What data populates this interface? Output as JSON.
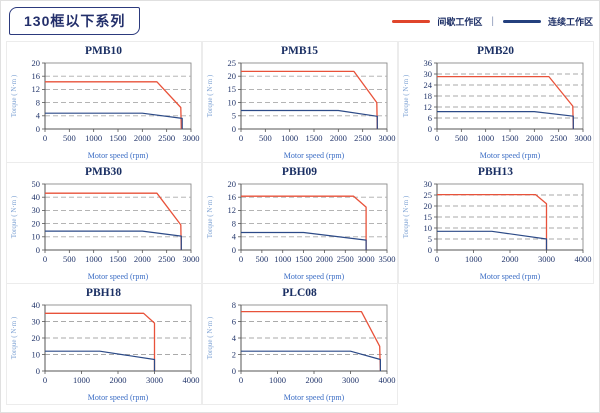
{
  "header": {
    "series_title": "130框以下系列",
    "legend": {
      "separator": "|",
      "items": [
        {
          "label": "间歇工作区",
          "color": "#e0452b"
        },
        {
          "label": "连续工作区",
          "color": "#24407e"
        }
      ]
    }
  },
  "colors": {
    "intermittent_line": "#e8523a",
    "continuous_line": "#2c4a87",
    "grid_line": "#aaaaaa",
    "plot_border": "#8c8c8c",
    "axis_line": "#555555",
    "tick_label": "#23366b",
    "xlabel_text": "#3a6cc4",
    "ylabel_text": "#7fa3d4",
    "title_text": "#1a2f63"
  },
  "chart_data": [
    {
      "type": "line",
      "title": "PMB10",
      "xlabel": "Motor speed (rpm)",
      "ylabel": "Torque ( N·m )",
      "xlim": [
        0,
        3000
      ],
      "xtick_step": 500,
      "ylim": [
        0,
        20
      ],
      "ytick_step": 4,
      "grid": "horizontal-dashed",
      "legend_position": "none",
      "series": [
        {
          "name": "间歇工作区",
          "color": "red",
          "points": [
            [
              0,
              14.3
            ],
            [
              2300,
              14.3
            ],
            [
              2790,
              6.5
            ],
            [
              2800,
              0
            ]
          ]
        },
        {
          "name": "连续工作区",
          "color": "blue",
          "points": [
            [
              0,
              4.8
            ],
            [
              2000,
              4.8
            ],
            [
              2820,
              3.2
            ],
            [
              2820,
              0
            ]
          ]
        }
      ]
    },
    {
      "type": "line",
      "title": "PMB15",
      "xlabel": "Motor speed (rpm)",
      "ylabel": "Torque ( N·m )",
      "xlim": [
        0,
        3000
      ],
      "xtick_step": 500,
      "ylim": [
        0,
        25
      ],
      "ytick_step": 5,
      "grid": "horizontal-dashed",
      "legend_position": "none",
      "series": [
        {
          "name": "间歇工作区",
          "color": "red",
          "points": [
            [
              0,
              21.8
            ],
            [
              2320,
              21.8
            ],
            [
              2790,
              10
            ],
            [
              2800,
              0
            ]
          ]
        },
        {
          "name": "连续工作区",
          "color": "blue",
          "points": [
            [
              0,
              7
            ],
            [
              2000,
              7
            ],
            [
              2800,
              4.8
            ],
            [
              2800,
              0
            ]
          ]
        }
      ]
    },
    {
      "type": "line",
      "title": "PMB20",
      "xlabel": "Motor speed (rpm)",
      "ylabel": "Torque ( N·m )",
      "xlim": [
        0,
        3000
      ],
      "xtick_step": 500,
      "ylim": [
        0,
        36
      ],
      "ytick_step": 6,
      "grid": "horizontal-dashed",
      "legend_position": "none",
      "series": [
        {
          "name": "间歇工作区",
          "color": "red",
          "points": [
            [
              0,
              28.6
            ],
            [
              2300,
              28.6
            ],
            [
              2790,
              12.5
            ],
            [
              2800,
              0
            ]
          ]
        },
        {
          "name": "连续工作区",
          "color": "blue",
          "points": [
            [
              0,
              9.5
            ],
            [
              2000,
              9.5
            ],
            [
              2800,
              7
            ],
            [
              2800,
              0
            ]
          ]
        }
      ]
    },
    {
      "type": "line",
      "title": "PMB30",
      "xlabel": "Motor speed (rpm)",
      "ylabel": "Torque ( N·m )",
      "xlim": [
        0,
        3000
      ],
      "xtick_step": 500,
      "ylim": [
        0,
        50
      ],
      "ytick_step": 10,
      "grid": "horizontal-dashed",
      "legend_position": "none",
      "series": [
        {
          "name": "间歇工作区",
          "color": "red",
          "points": [
            [
              0,
              43
            ],
            [
              2300,
              43
            ],
            [
              2790,
              19
            ],
            [
              2800,
              0
            ]
          ]
        },
        {
          "name": "连续工作区",
          "color": "blue",
          "points": [
            [
              0,
              14.3
            ],
            [
              2000,
              14.3
            ],
            [
              2800,
              10.5
            ],
            [
              2800,
              0
            ]
          ]
        }
      ]
    },
    {
      "type": "line",
      "title": "PBH09",
      "xlabel": "Motor speed (rpm)",
      "ylabel": "Torque ( N·m )",
      "xlim": [
        0,
        3500
      ],
      "xtick_step": 500,
      "ylim": [
        0,
        20
      ],
      "ytick_step": 4,
      "grid": "horizontal-dashed",
      "legend_position": "none",
      "series": [
        {
          "name": "间歇工作区",
          "color": "red",
          "points": [
            [
              0,
              16.3
            ],
            [
              2700,
              16.3
            ],
            [
              3000,
              13
            ],
            [
              3000,
              0
            ]
          ]
        },
        {
          "name": "连续工作区",
          "color": "blue",
          "points": [
            [
              0,
              5.3
            ],
            [
              1500,
              5.3
            ],
            [
              3000,
              3
            ],
            [
              3000,
              0
            ]
          ]
        }
      ]
    },
    {
      "type": "line",
      "title": "PBH13",
      "xlabel": "Motor speed (rpm)",
      "ylabel": "Torque ( N·m )",
      "xlim": [
        0,
        4000
      ],
      "xtick_step": 1000,
      "ylim": [
        0,
        30
      ],
      "ytick_step": 5,
      "grid": "horizontal-dashed",
      "legend_position": "none",
      "series": [
        {
          "name": "间歇工作区",
          "color": "red",
          "points": [
            [
              0,
              25.2
            ],
            [
              2700,
              25.2
            ],
            [
              3000,
              21
            ],
            [
              3000,
              0
            ]
          ]
        },
        {
          "name": "连续工作区",
          "color": "blue",
          "points": [
            [
              0,
              8.5
            ],
            [
              1500,
              8.5
            ],
            [
              3000,
              5
            ],
            [
              3000,
              0
            ]
          ]
        }
      ]
    },
    {
      "type": "line",
      "title": "PBH18",
      "xlabel": "Motor speed (rpm)",
      "ylabel": "Torque ( N·m )",
      "xlim": [
        0,
        4000
      ],
      "xtick_step": 1000,
      "ylim": [
        0,
        40
      ],
      "ytick_step": 10,
      "grid": "horizontal-dashed",
      "legend_position": "none",
      "series": [
        {
          "name": "间歇工作区",
          "color": "red",
          "points": [
            [
              0,
              35
            ],
            [
              2700,
              35
            ],
            [
              3000,
              29
            ],
            [
              3000,
              0
            ]
          ]
        },
        {
          "name": "连续工作区",
          "color": "blue",
          "points": [
            [
              0,
              12
            ],
            [
              1500,
              12
            ],
            [
              3000,
              7
            ],
            [
              3000,
              0
            ]
          ]
        }
      ]
    },
    {
      "type": "line",
      "title": "PLC08",
      "xlabel": "Motor speed (rpm)",
      "ylabel": "Torque ( N·m )",
      "xlim": [
        0,
        4000
      ],
      "xtick_step": 1000,
      "ylim": [
        0,
        8
      ],
      "ytick_step": 2,
      "grid": "horizontal-dashed",
      "legend_position": "none",
      "series": [
        {
          "name": "间歇工作区",
          "color": "red",
          "points": [
            [
              0,
              7.2
            ],
            [
              3300,
              7.2
            ],
            [
              3800,
              3
            ],
            [
              3820,
              0
            ]
          ]
        },
        {
          "name": "连续工作区",
          "color": "blue",
          "points": [
            [
              0,
              2.4
            ],
            [
              3000,
              2.4
            ],
            [
              3820,
              1.4
            ],
            [
              3820,
              0
            ]
          ]
        }
      ]
    }
  ]
}
